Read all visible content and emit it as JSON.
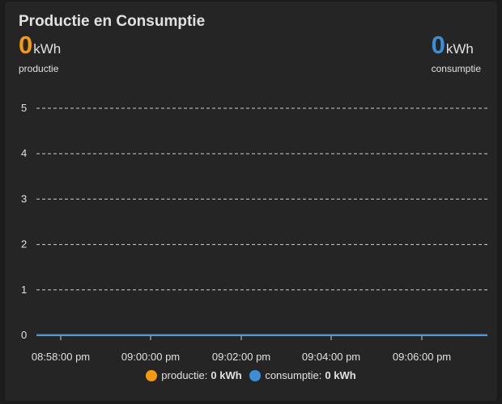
{
  "card": {
    "title": "Productie en Consumptie"
  },
  "stats": {
    "production": {
      "value": "0",
      "unit": "kWh",
      "label": "productie",
      "color": "#f59a0e"
    },
    "consumption": {
      "value": "0",
      "unit": "kWh",
      "label": "consumptie",
      "color": "#3b8fd9"
    }
  },
  "legend": [
    {
      "label": "productie:",
      "value": "0 kWh",
      "color": "#f59a0e"
    },
    {
      "label": "consumptie:",
      "value": "0 kWh",
      "color": "#3b8fd9"
    }
  ],
  "chart_data": {
    "type": "line",
    "x_ticks": [
      "08:58:00 pm",
      "09:00:00 pm",
      "09:02:00 pm",
      "09:04:00 pm",
      "09:06:00 pm"
    ],
    "y_ticks": [
      "0",
      "1",
      "2",
      "3",
      "4",
      "5"
    ],
    "ylim": [
      0,
      5
    ],
    "grid": true,
    "legend_position": "bottom",
    "series": [
      {
        "name": "productie",
        "color": "#f59a0e",
        "values": [
          0,
          0,
          0,
          0,
          0
        ]
      },
      {
        "name": "consumptie",
        "color": "#3b8fd9",
        "values": [
          0,
          0,
          0,
          0,
          0
        ]
      }
    ]
  }
}
